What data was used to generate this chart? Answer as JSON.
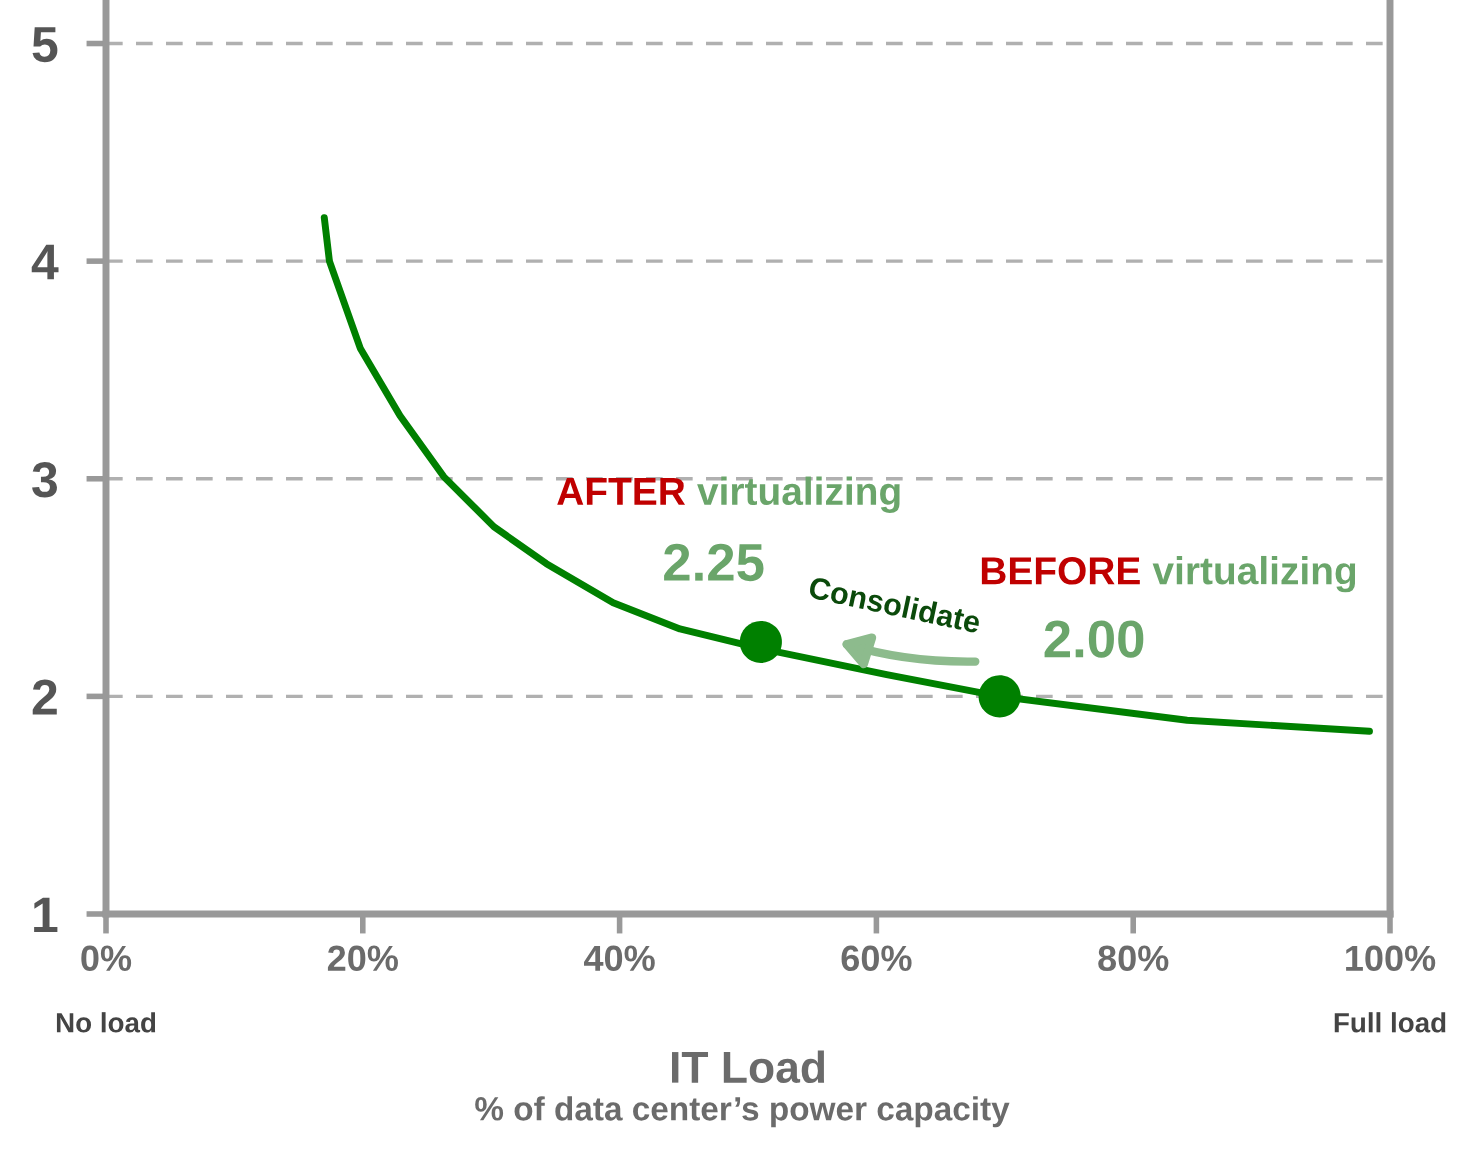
{
  "chart_data": {
    "type": "line",
    "xlabel": "IT Load",
    "xlim": [
      0,
      100
    ],
    "ylim": [
      1,
      5.2
    ],
    "xticks": [
      {
        "value": 0,
        "label": "0%"
      },
      {
        "value": 20,
        "label": "20%"
      },
      {
        "value": 40,
        "label": "40%"
      },
      {
        "value": 60,
        "label": "60%"
      },
      {
        "value": 80,
        "label": "80%"
      },
      {
        "value": 100,
        "label": "100%"
      }
    ],
    "yticks": [
      1,
      2,
      3,
      4,
      5
    ],
    "grid": "y",
    "line_style": "solid",
    "marker": "none",
    "series": [
      {
        "color": "#008000",
        "x": [
          17.0,
          17.4,
          19.8,
          22.9,
          26.3,
          30.2,
          34.3,
          39.5,
          44.7,
          51.0,
          60.8,
          69.6,
          84.2,
          98.4
        ],
        "values": [
          4.2,
          4.0,
          3.6,
          3.29,
          3.01,
          2.78,
          2.61,
          2.43,
          2.31,
          2.22,
          2.1,
          2.0,
          1.89,
          1.84
        ]
      },
      {
        "type": "scatter",
        "color": "#008000",
        "marker": "circle",
        "x": [
          51.0,
          69.6
        ],
        "values": [
          2.25,
          2.0
        ],
        "value_labels": [
          "2.25",
          "2.00"
        ]
      }
    ],
    "annotations": [
      "AFTER",
      "virtualizing",
      "BEFORE",
      "virtualizing",
      "Consolidate",
      "No load",
      "Full load",
      "% of data center’s power capacity"
    ]
  }
}
